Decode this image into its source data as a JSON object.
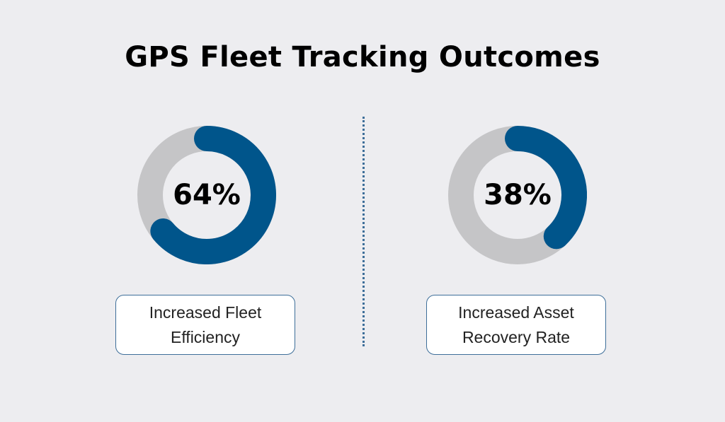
{
  "title": "GPS Fleet Tracking Outcomes",
  "colors": {
    "background": "#ededf0",
    "fill": "#00558b",
    "track": "#c5c5c7",
    "box_border": "#3d6e99"
  },
  "chart_data": [
    {
      "type": "pie",
      "subtype": "donut",
      "value_percent": 64,
      "value_label": "64%",
      "label": "Increased Fleet Efficiency",
      "fill_color": "#00558b",
      "track_color": "#c5c5c7"
    },
    {
      "type": "pie",
      "subtype": "donut",
      "value_percent": 38,
      "value_label": "38%",
      "label": "Increased Asset Recovery Rate",
      "fill_color": "#00558b",
      "track_color": "#c5c5c7"
    }
  ]
}
